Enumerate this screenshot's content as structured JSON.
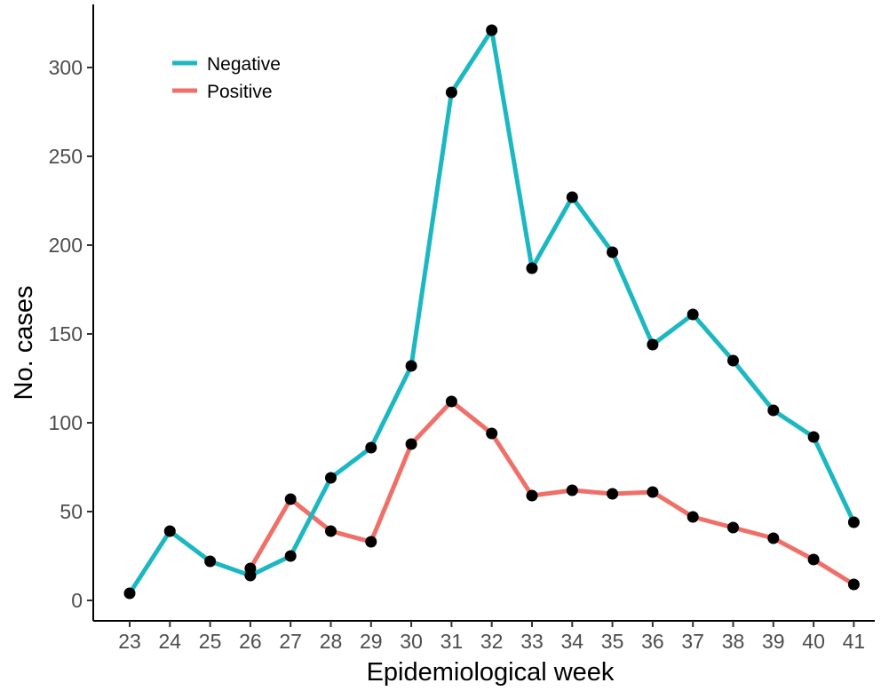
{
  "chart_data": {
    "type": "line",
    "xlabel": "Epidemiological week",
    "ylabel": "No. cases",
    "x": [
      23,
      24,
      25,
      26,
      27,
      28,
      29,
      30,
      31,
      32,
      33,
      34,
      35,
      36,
      37,
      38,
      39,
      40,
      41
    ],
    "xlim": [
      22.2,
      41.6
    ],
    "ylim": [
      -10,
      336
    ],
    "yticks": [
      0,
      50,
      100,
      150,
      200,
      250,
      300
    ],
    "grid": false,
    "legend_position": "top-left",
    "marker_color": "#000000",
    "series": [
      {
        "name": "Negative",
        "color": "#1cb8c2",
        "values": [
          4,
          39,
          22,
          14,
          25,
          69,
          86,
          132,
          286,
          321,
          187,
          227,
          196,
          144,
          161,
          135,
          107,
          92,
          44
        ]
      },
      {
        "name": "Positive",
        "color": "#ef7068",
        "values": [
          null,
          null,
          null,
          18,
          57,
          39,
          33,
          88,
          112,
          94,
          59,
          62,
          60,
          61,
          47,
          41,
          35,
          23,
          9
        ]
      }
    ]
  }
}
